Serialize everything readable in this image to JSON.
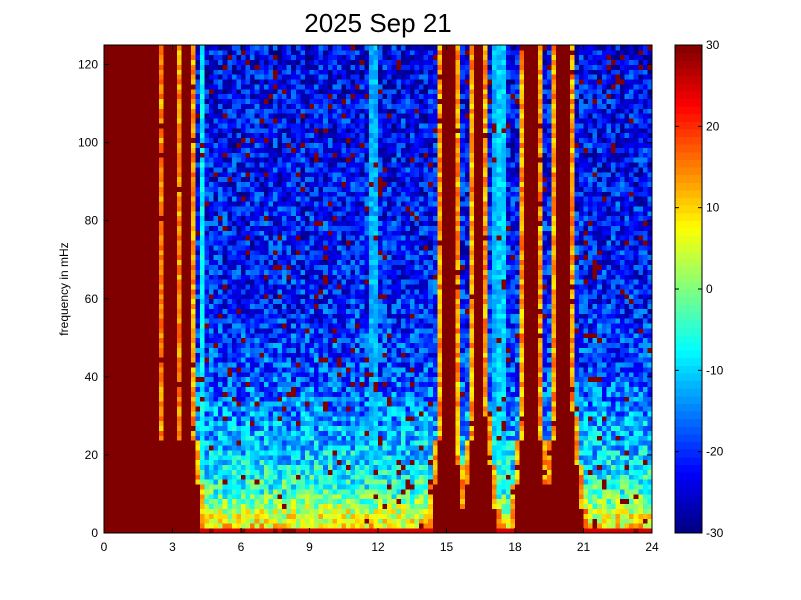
{
  "chart_data": {
    "type": "heatmap",
    "title": "2025 Sep 21",
    "xlabel": "",
    "ylabel": "frequency in mHz",
    "xlim": [
      0,
      24
    ],
    "ylim": [
      0,
      125
    ],
    "x_ticks": [
      0,
      3,
      6,
      9,
      12,
      15,
      18,
      21,
      24
    ],
    "y_ticks": [
      0,
      20,
      40,
      60,
      80,
      100,
      120
    ],
    "colorbar": {
      "range": [
        -30,
        30
      ],
      "ticks": [
        -30,
        -20,
        -10,
        0,
        10,
        20,
        30
      ],
      "colormap": "jet"
    },
    "grid": false,
    "cell_width_hours": 0.2,
    "cell_height_mhz": 1.25,
    "high_power_bands": [
      {
        "x_start": 0,
        "x_end": 2.4,
        "freq_min": 0,
        "freq_max": 125
      },
      {
        "x_start": 2.6,
        "x_end": 3.1,
        "freq_min": 0,
        "freq_max": 125
      },
      {
        "x_start": 3.4,
        "x_end": 3.8,
        "freq_min": 0,
        "freq_max": 125
      },
      {
        "x_start": 14.8,
        "x_end": 15.3,
        "freq_min": 0,
        "freq_max": 125
      },
      {
        "x_start": 16.2,
        "x_end": 16.7,
        "freq_min": 0,
        "freq_max": 125
      },
      {
        "x_start": 18.4,
        "x_end": 19.0,
        "freq_min": 0,
        "freq_max": 125
      },
      {
        "x_start": 19.8,
        "x_end": 20.5,
        "freq_min": 0,
        "freq_max": 125
      }
    ],
    "narrow_lines": [
      {
        "x": 2.9,
        "value": -8
      },
      {
        "x": 4.3,
        "value": -8
      },
      {
        "x": 11.8,
        "value": -12
      },
      {
        "x": 17.1,
        "value": -12
      },
      {
        "x": 17.4,
        "value": -10
      }
    ],
    "background_profile": [
      {
        "freq": 0,
        "value": 10
      },
      {
        "freq": 5,
        "value": 5
      },
      {
        "freq": 10,
        "value": -4
      },
      {
        "freq": 20,
        "value": -10
      },
      {
        "freq": 40,
        "value": -18
      },
      {
        "freq": 60,
        "value": -21
      },
      {
        "freq": 125,
        "value": -23
      }
    ]
  }
}
